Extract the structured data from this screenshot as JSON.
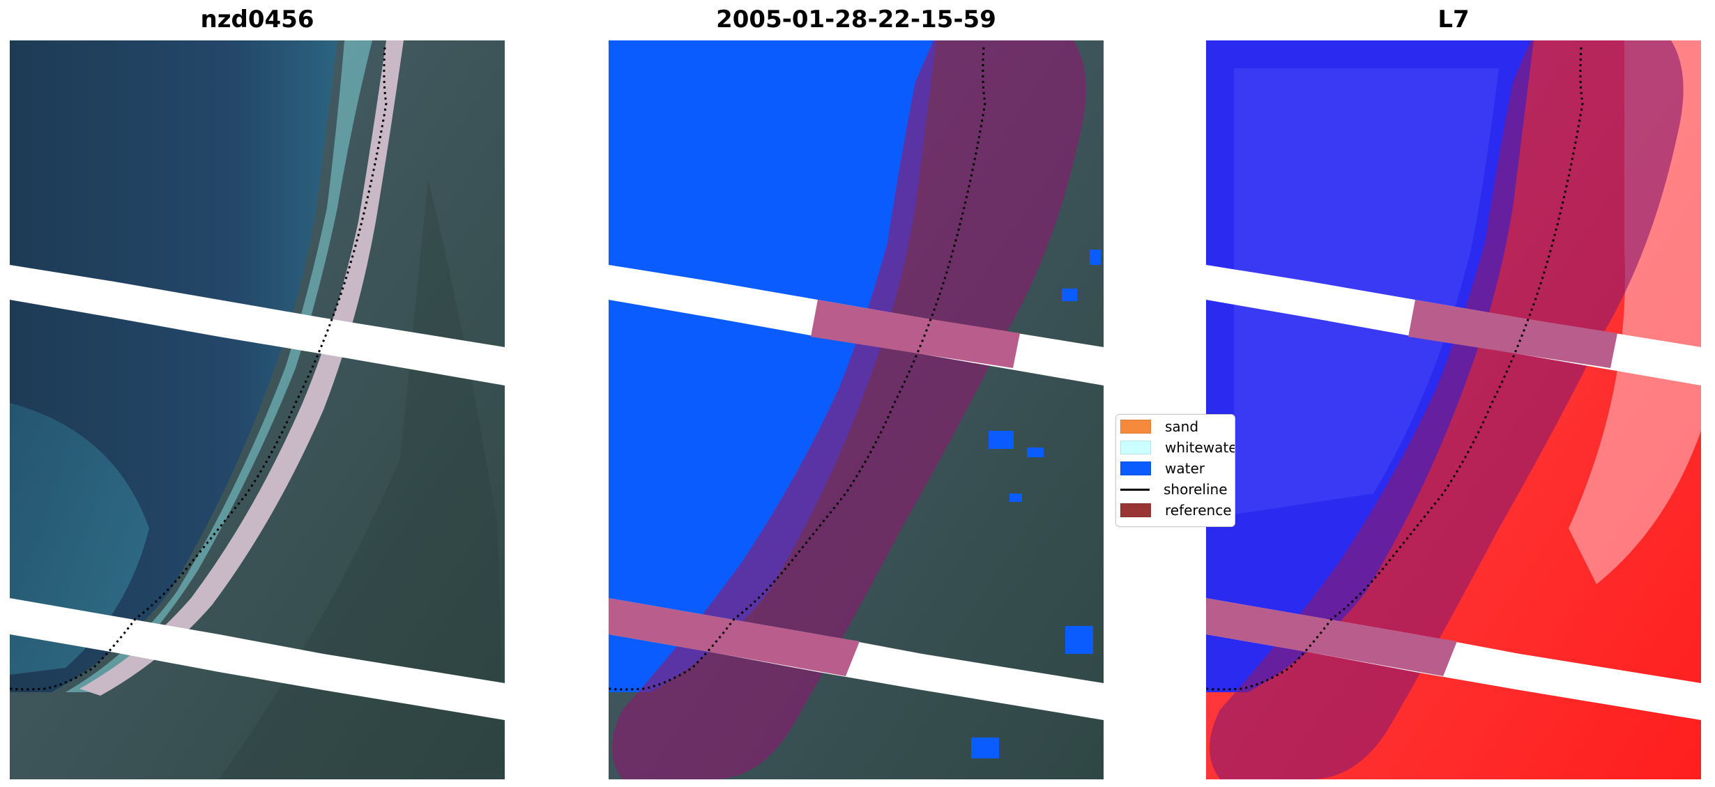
{
  "panels": [
    {
      "title": "nzd0456"
    },
    {
      "title": "2005-01-28-22-15-59"
    },
    {
      "title": "L7"
    }
  ],
  "legend": {
    "items": [
      {
        "label": "sand",
        "color": "#f58a3c",
        "kind": "patch"
      },
      {
        "label": "whitewater",
        "color": "#ccffff",
        "kind": "patch"
      },
      {
        "label": "water",
        "color": "#0b5cff",
        "kind": "patch"
      },
      {
        "label": "shoreline",
        "color": "#000000",
        "kind": "line"
      },
      {
        "label": "reference",
        "color": "#9a3535",
        "kind": "patch"
      }
    ]
  }
}
